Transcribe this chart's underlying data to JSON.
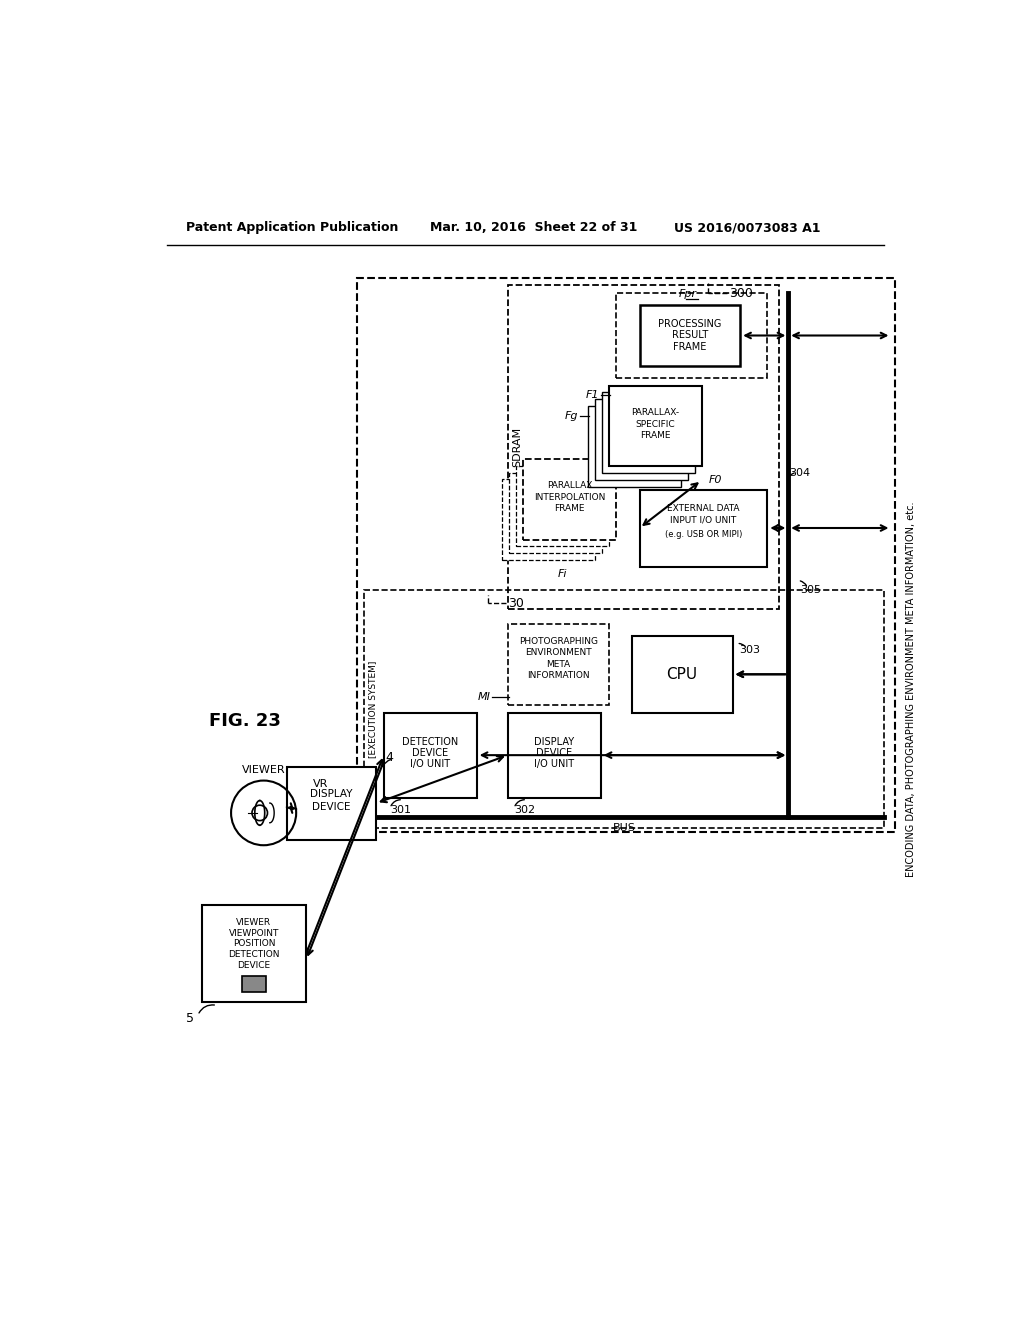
{
  "bg_color": "#ffffff",
  "header_left": "Patent Application Publication",
  "header_mid": "Mar. 10, 2016  Sheet 22 of 31",
  "header_right": "US 2016/0073083 A1"
}
